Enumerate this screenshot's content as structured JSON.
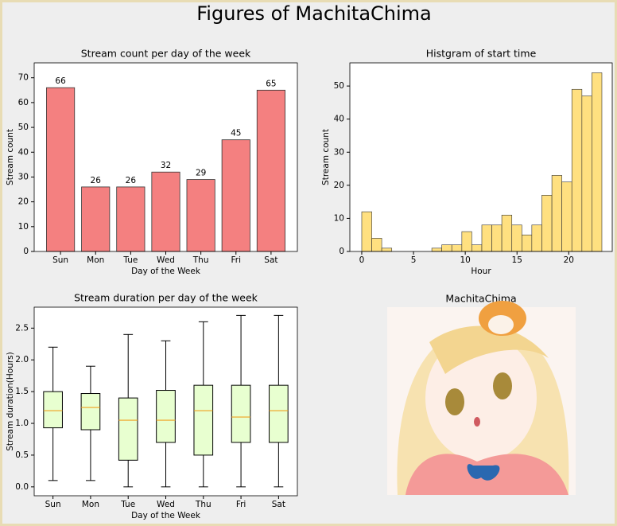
{
  "title": "Figures of MachitaChima",
  "image": {
    "title": "MachitaChima"
  },
  "chart_data": [
    {
      "type": "bar",
      "title": "Stream count per day of the week",
      "xlabel": "Day of the Week",
      "ylabel": "Stream count",
      "categories": [
        "Sun",
        "Mon",
        "Tue",
        "Wed",
        "Thu",
        "Fri",
        "Sat"
      ],
      "values": [
        66,
        26,
        26,
        32,
        29,
        45,
        65
      ],
      "color": "#f48080",
      "ylim": [
        0,
        76
      ],
      "yticks": [
        0,
        10,
        20,
        30,
        40,
        50,
        60,
        70
      ]
    },
    {
      "type": "histogram",
      "title": "Histgram of start time",
      "xlabel": "Hour",
      "ylabel": "Stream count",
      "bins": [
        0,
        0.97,
        1.93,
        2.9,
        3.87,
        4.83,
        5.8,
        6.77,
        7.73,
        8.7,
        9.67,
        10.63,
        11.6,
        12.57,
        13.53,
        14.5,
        15.47,
        16.43,
        17.4,
        18.37,
        19.33,
        20.3,
        21.27,
        22.23,
        23.2
      ],
      "values": [
        12,
        4,
        1,
        0,
        0,
        0,
        0,
        1,
        2,
        2,
        6,
        2,
        8,
        8,
        11,
        8,
        5,
        8,
        17,
        23,
        21,
        49,
        47,
        54
      ],
      "color": "#ffe080",
      "xlim": [
        -1.15,
        24.2
      ],
      "xticks": [
        0,
        5,
        10,
        15,
        20
      ],
      "ylim": [
        0,
        57
      ],
      "yticks": [
        0,
        10,
        20,
        30,
        40,
        50
      ]
    },
    {
      "type": "box",
      "title": "Stream duration per day of the week",
      "xlabel": "Day of the Week",
      "ylabel": "Stream duration(Hours)",
      "categories": [
        "Sun",
        "Mon",
        "Tue",
        "Wed",
        "Thu",
        "Fri",
        "Sat"
      ],
      "whisker_low": [
        0.1,
        0.1,
        0,
        0,
        0,
        0,
        0
      ],
      "q1": [
        0.93,
        0.9,
        0.42,
        0.7,
        0.5,
        0.7,
        0.7
      ],
      "median": [
        1.2,
        1.25,
        1.05,
        1.05,
        1.2,
        1.1,
        1.2
      ],
      "q3": [
        1.5,
        1.47,
        1.4,
        1.52,
        1.6,
        1.6,
        1.6
      ],
      "whisker_high": [
        2.2,
        1.9,
        2.4,
        2.3,
        2.6,
        2.7,
        2.7
      ],
      "color": "#e8ffd0",
      "median_color": "#f0a020",
      "ylim": [
        -0.14,
        2.83
      ],
      "yticks": [
        {
          "value": 0,
          "label": "0.0"
        },
        {
          "value": 0.5,
          "label": "0.5"
        },
        {
          "value": 1,
          "label": "1.0"
        },
        {
          "value": 1.5,
          "label": "1.5"
        },
        {
          "value": 2,
          "label": "2.0"
        },
        {
          "value": 2.5,
          "label": "2.5"
        }
      ]
    }
  ]
}
